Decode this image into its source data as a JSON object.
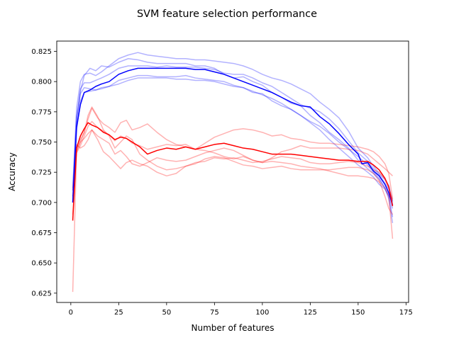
{
  "chart_data": {
    "type": "line",
    "title": "SVM feature selection performance",
    "xlabel": "Number of features",
    "ylabel": "Accuracy",
    "xlim": [
      -7.35,
      176.35
    ],
    "ylim": [
      0.6173,
      0.8335
    ],
    "x_ticks": [
      0,
      25,
      50,
      75,
      100,
      125,
      150,
      175
    ],
    "x_tick_labels": [
      "0",
      "25",
      "50",
      "75",
      "100",
      "125",
      "150",
      "175"
    ],
    "y_ticks": [
      0.625,
      0.65,
      0.675,
      0.7,
      0.725,
      0.75,
      0.775,
      0.8,
      0.825
    ],
    "y_tick_labels": [
      "0.625",
      "0.650",
      "0.675",
      "0.700",
      "0.725",
      "0.750",
      "0.775",
      "0.800",
      "0.825"
    ],
    "grid": false,
    "legend": "none",
    "colors": {
      "blue": "#0000ff",
      "red": "#ff0000"
    },
    "series": [
      {
        "color": "#0000ff",
        "alpha": 0.3,
        "linewidth": 1.5,
        "x": [
          1,
          3,
          5,
          7,
          10,
          13,
          16,
          20,
          25,
          30,
          35,
          40,
          45,
          50,
          55,
          60,
          65,
          70,
          75,
          80,
          85,
          90,
          95,
          100,
          105,
          110,
          115,
          120,
          125,
          130,
          135,
          140,
          145,
          150,
          155,
          158,
          161,
          164,
          166,
          168
        ],
        "y": [
          0.7,
          0.765,
          0.792,
          0.805,
          0.811,
          0.809,
          0.813,
          0.812,
          0.816,
          0.819,
          0.818,
          0.816,
          0.815,
          0.815,
          0.815,
          0.815,
          0.813,
          0.813,
          0.811,
          0.806,
          0.803,
          0.804,
          0.8,
          0.797,
          0.791,
          0.787,
          0.782,
          0.78,
          0.772,
          0.766,
          0.758,
          0.752,
          0.745,
          0.735,
          0.728,
          0.724,
          0.719,
          0.712,
          0.706,
          0.695
        ]
      },
      {
        "color": "#0000ff",
        "alpha": 0.3,
        "linewidth": 1.5,
        "x": [
          1,
          3,
          5,
          7,
          10,
          13,
          16,
          20,
          25,
          30,
          35,
          40,
          45,
          50,
          55,
          60,
          65,
          70,
          75,
          80,
          85,
          90,
          95,
          100,
          105,
          110,
          115,
          120,
          125,
          130,
          135,
          140,
          145,
          150,
          155,
          158,
          161,
          164,
          166,
          168
        ],
        "y": [
          0.705,
          0.77,
          0.79,
          0.795,
          0.794,
          0.793,
          0.795,
          0.796,
          0.801,
          0.803,
          0.805,
          0.805,
          0.804,
          0.804,
          0.804,
          0.805,
          0.803,
          0.802,
          0.801,
          0.8,
          0.797,
          0.795,
          0.791,
          0.79,
          0.784,
          0.78,
          0.777,
          0.772,
          0.767,
          0.763,
          0.757,
          0.75,
          0.744,
          0.738,
          0.731,
          0.725,
          0.72,
          0.712,
          0.703,
          0.683
        ]
      },
      {
        "color": "#0000ff",
        "alpha": 0.3,
        "linewidth": 1.5,
        "x": [
          1,
          3,
          5,
          7,
          10,
          13,
          16,
          20,
          25,
          30,
          35,
          40,
          45,
          50,
          55,
          60,
          65,
          70,
          75,
          80,
          85,
          90,
          95,
          100,
          105,
          110,
          115,
          120,
          125,
          130,
          135,
          140,
          145,
          150,
          155,
          158,
          161,
          164,
          166,
          168
        ],
        "y": [
          0.712,
          0.778,
          0.8,
          0.806,
          0.807,
          0.805,
          0.808,
          0.813,
          0.819,
          0.822,
          0.824,
          0.822,
          0.821,
          0.82,
          0.819,
          0.819,
          0.818,
          0.818,
          0.817,
          0.816,
          0.815,
          0.813,
          0.81,
          0.806,
          0.803,
          0.801,
          0.798,
          0.794,
          0.79,
          0.783,
          0.777,
          0.77,
          0.759,
          0.745,
          0.737,
          0.73,
          0.724,
          0.719,
          0.714,
          0.701
        ]
      },
      {
        "color": "#0000ff",
        "alpha": 0.3,
        "linewidth": 1.5,
        "x": [
          1,
          3,
          5,
          7,
          10,
          13,
          16,
          20,
          25,
          30,
          35,
          40,
          45,
          50,
          55,
          60,
          65,
          70,
          75,
          80,
          85,
          90,
          95,
          100,
          105,
          110,
          115,
          120,
          125,
          130,
          135,
          140,
          145,
          150,
          155,
          158,
          161,
          164,
          166,
          168
        ],
        "y": [
          0.7,
          0.76,
          0.784,
          0.791,
          0.792,
          0.793,
          0.794,
          0.796,
          0.798,
          0.801,
          0.803,
          0.803,
          0.803,
          0.803,
          0.802,
          0.802,
          0.801,
          0.801,
          0.8,
          0.798,
          0.796,
          0.795,
          0.792,
          0.789,
          0.786,
          0.782,
          0.777,
          0.772,
          0.766,
          0.76,
          0.752,
          0.745,
          0.738,
          0.731,
          0.725,
          0.721,
          0.715,
          0.711,
          0.705,
          0.688
        ]
      },
      {
        "color": "#0000ff",
        "alpha": 0.3,
        "linewidth": 1.5,
        "x": [
          1,
          3,
          5,
          7,
          10,
          13,
          16,
          20,
          25,
          30,
          35,
          40,
          45,
          50,
          55,
          60,
          65,
          70,
          75,
          80,
          85,
          90,
          95,
          100,
          105,
          110,
          115,
          120,
          125,
          130,
          135,
          140,
          145,
          150,
          155,
          158,
          161,
          164,
          166,
          168
        ],
        "y": [
          0.71,
          0.77,
          0.794,
          0.799,
          0.799,
          0.801,
          0.803,
          0.806,
          0.811,
          0.813,
          0.813,
          0.813,
          0.812,
          0.813,
          0.812,
          0.812,
          0.812,
          0.811,
          0.81,
          0.807,
          0.806,
          0.806,
          0.803,
          0.799,
          0.796,
          0.791,
          0.786,
          0.781,
          0.778,
          0.775,
          0.769,
          0.761,
          0.751,
          0.741,
          0.734,
          0.728,
          0.723,
          0.716,
          0.711,
          0.7
        ]
      },
      {
        "color": "#ff0000",
        "alpha": 0.3,
        "linewidth": 1.5,
        "x": [
          1,
          3,
          5,
          7,
          9,
          11,
          14,
          17,
          20,
          23,
          26,
          29,
          32,
          36,
          40,
          45,
          50,
          55,
          60,
          65,
          70,
          75,
          80,
          85,
          90,
          95,
          100,
          105,
          110,
          115,
          120,
          125,
          130,
          135,
          140,
          145,
          150,
          155,
          158,
          161,
          164,
          166,
          168
        ],
        "y": [
          0.626,
          0.741,
          0.747,
          0.755,
          0.763,
          0.767,
          0.762,
          0.759,
          0.756,
          0.751,
          0.755,
          0.753,
          0.749,
          0.747,
          0.744,
          0.746,
          0.748,
          0.747,
          0.748,
          0.744,
          0.743,
          0.741,
          0.738,
          0.736,
          0.738,
          0.735,
          0.733,
          0.734,
          0.733,
          0.732,
          0.73,
          0.729,
          0.728,
          0.726,
          0.724,
          0.722,
          0.722,
          0.721,
          0.72,
          0.717,
          0.712,
          0.705,
          0.67
        ]
      },
      {
        "color": "#ff0000",
        "alpha": 0.3,
        "linewidth": 1.5,
        "x": [
          1,
          3,
          5,
          7,
          9,
          11,
          14,
          17,
          20,
          23,
          26,
          29,
          32,
          36,
          40,
          45,
          50,
          55,
          60,
          65,
          70,
          75,
          80,
          85,
          90,
          95,
          100,
          105,
          110,
          115,
          120,
          125,
          130,
          135,
          140,
          145,
          150,
          155,
          158,
          161,
          164,
          166,
          168
        ],
        "y": [
          0.7,
          0.745,
          0.752,
          0.758,
          0.769,
          0.778,
          0.77,
          0.765,
          0.762,
          0.758,
          0.766,
          0.768,
          0.76,
          0.762,
          0.765,
          0.758,
          0.752,
          0.748,
          0.746,
          0.744,
          0.749,
          0.754,
          0.757,
          0.76,
          0.761,
          0.76,
          0.758,
          0.755,
          0.756,
          0.753,
          0.752,
          0.75,
          0.749,
          0.749,
          0.748,
          0.747,
          0.746,
          0.744,
          0.742,
          0.738,
          0.732,
          0.724,
          0.703
        ]
      },
      {
        "color": "#ff0000",
        "alpha": 0.3,
        "linewidth": 1.5,
        "x": [
          1,
          3,
          5,
          7,
          9,
          11,
          14,
          17,
          20,
          23,
          26,
          29,
          32,
          36,
          40,
          45,
          50,
          55,
          60,
          65,
          70,
          75,
          80,
          85,
          90,
          95,
          100,
          105,
          110,
          115,
          120,
          125,
          130,
          135,
          140,
          145,
          150,
          155,
          158,
          161,
          164,
          166,
          168
        ],
        "y": [
          0.71,
          0.748,
          0.745,
          0.747,
          0.752,
          0.76,
          0.755,
          0.752,
          0.749,
          0.74,
          0.743,
          0.738,
          0.732,
          0.73,
          0.733,
          0.737,
          0.735,
          0.734,
          0.735,
          0.738,
          0.741,
          0.743,
          0.745,
          0.743,
          0.739,
          0.735,
          0.733,
          0.737,
          0.742,
          0.744,
          0.747,
          0.745,
          0.745,
          0.745,
          0.745,
          0.744,
          0.743,
          0.74,
          0.736,
          0.732,
          0.728,
          0.725,
          0.722
        ]
      },
      {
        "color": "#ff0000",
        "alpha": 0.3,
        "linewidth": 1.5,
        "x": [
          1,
          3,
          5,
          7,
          9,
          11,
          14,
          17,
          20,
          23,
          26,
          29,
          32,
          36,
          40,
          45,
          50,
          55,
          60,
          65,
          70,
          75,
          80,
          85,
          90,
          95,
          100,
          105,
          110,
          115,
          120,
          125,
          130,
          135,
          140,
          145,
          150,
          155,
          158,
          161,
          164,
          166,
          168
        ],
        "y": [
          0.69,
          0.743,
          0.75,
          0.758,
          0.772,
          0.779,
          0.771,
          0.76,
          0.755,
          0.745,
          0.75,
          0.755,
          0.752,
          0.74,
          0.735,
          0.73,
          0.727,
          0.728,
          0.73,
          0.732,
          0.736,
          0.738,
          0.737,
          0.734,
          0.731,
          0.73,
          0.728,
          0.729,
          0.73,
          0.728,
          0.727,
          0.727,
          0.727,
          0.727,
          0.728,
          0.729,
          0.729,
          0.727,
          0.724,
          0.718,
          0.705,
          0.695,
          0.69
        ]
      },
      {
        "color": "#ff0000",
        "alpha": 0.3,
        "linewidth": 1.5,
        "x": [
          1,
          3,
          5,
          7,
          9,
          11,
          14,
          17,
          20,
          23,
          26,
          29,
          32,
          36,
          40,
          45,
          50,
          55,
          60,
          65,
          70,
          75,
          80,
          85,
          90,
          95,
          100,
          105,
          110,
          115,
          120,
          125,
          130,
          135,
          140,
          145,
          150,
          155,
          158,
          161,
          164,
          166,
          168
        ],
        "y": [
          0.705,
          0.742,
          0.75,
          0.753,
          0.757,
          0.76,
          0.752,
          0.742,
          0.738,
          0.733,
          0.728,
          0.733,
          0.735,
          0.732,
          0.73,
          0.725,
          0.722,
          0.724,
          0.73,
          0.733,
          0.734,
          0.737,
          0.736,
          0.737,
          0.735,
          0.733,
          0.734,
          0.736,
          0.738,
          0.737,
          0.736,
          0.733,
          0.732,
          0.732,
          0.733,
          0.734,
          0.733,
          0.73,
          0.727,
          0.725,
          0.719,
          0.712,
          0.702
        ]
      },
      {
        "color": "#0000ff",
        "alpha": 1.0,
        "linewidth": 1.5,
        "x": [
          1,
          3,
          5,
          7,
          10,
          13,
          16,
          20,
          25,
          30,
          35,
          40,
          45,
          50,
          55,
          60,
          65,
          70,
          75,
          80,
          85,
          90,
          95,
          100,
          105,
          110,
          115,
          120,
          125,
          130,
          135,
          140,
          145,
          150,
          152,
          155,
          158,
          161,
          164,
          166,
          168
        ],
        "y": [
          0.7,
          0.762,
          0.781,
          0.791,
          0.793,
          0.796,
          0.798,
          0.8,
          0.806,
          0.809,
          0.811,
          0.811,
          0.811,
          0.811,
          0.811,
          0.811,
          0.81,
          0.81,
          0.808,
          0.806,
          0.803,
          0.8,
          0.797,
          0.794,
          0.791,
          0.787,
          0.783,
          0.78,
          0.779,
          0.771,
          0.765,
          0.757,
          0.748,
          0.74,
          0.732,
          0.733,
          0.726,
          0.722,
          0.715,
          0.708,
          0.698
        ]
      },
      {
        "color": "#ff0000",
        "alpha": 1.0,
        "linewidth": 1.5,
        "x": [
          1,
          3,
          5,
          7,
          9,
          11,
          14,
          17,
          20,
          23,
          26,
          29,
          32,
          36,
          40,
          45,
          50,
          55,
          60,
          65,
          70,
          75,
          80,
          85,
          90,
          95,
          100,
          105,
          110,
          115,
          120,
          125,
          130,
          135,
          140,
          145,
          150,
          155,
          158,
          161,
          164,
          166,
          168
        ],
        "y": [
          0.685,
          0.745,
          0.755,
          0.761,
          0.766,
          0.764,
          0.762,
          0.758,
          0.756,
          0.752,
          0.754,
          0.753,
          0.75,
          0.746,
          0.74,
          0.743,
          0.745,
          0.744,
          0.746,
          0.744,
          0.746,
          0.748,
          0.749,
          0.747,
          0.745,
          0.744,
          0.742,
          0.74,
          0.74,
          0.74,
          0.739,
          0.738,
          0.737,
          0.736,
          0.735,
          0.735,
          0.734,
          0.734,
          0.731,
          0.727,
          0.72,
          0.713,
          0.697
        ]
      }
    ]
  }
}
